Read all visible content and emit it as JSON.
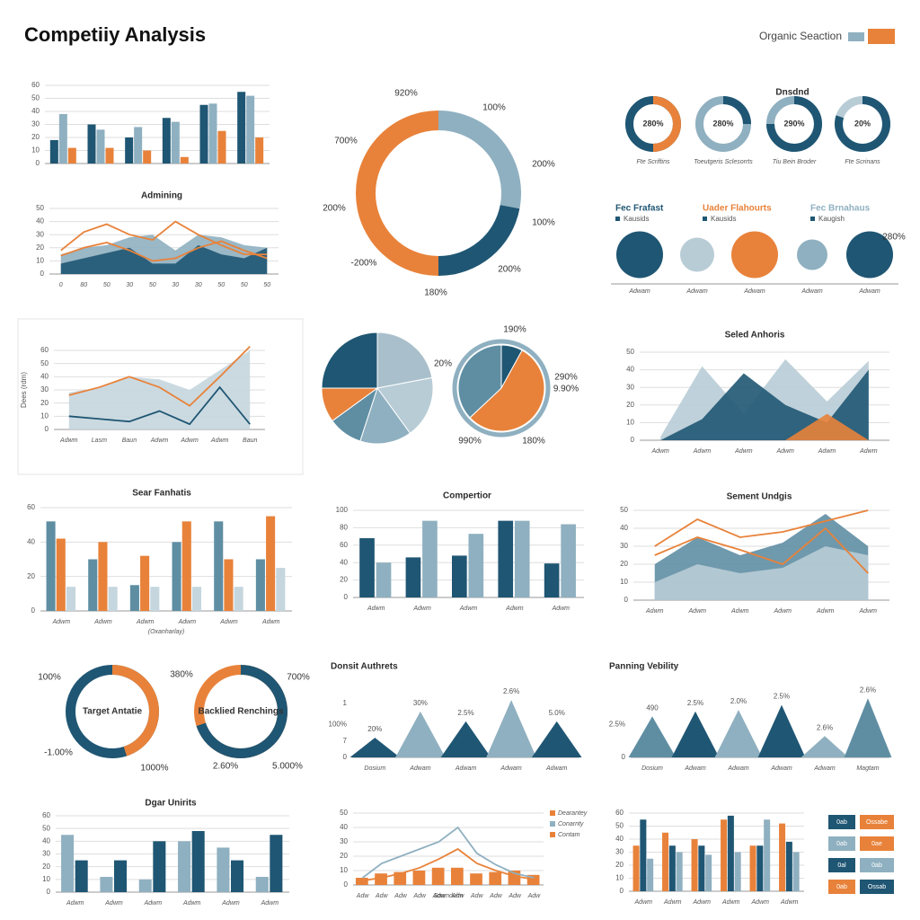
{
  "header": {
    "title": "Competiiy Analysis",
    "legend": {
      "label": "Organic Seaction",
      "colors": [
        "#8fb0c0",
        "#e8823a"
      ]
    }
  },
  "chart_data": [
    {
      "type": "bar",
      "ylim": [
        0,
        60
      ],
      "yticks": [
        0,
        10,
        20,
        30,
        40,
        50,
        60
      ],
      "grid": true,
      "series": [
        {
          "color": "#1f5673",
          "values": [
            18,
            30,
            20,
            35,
            45,
            55
          ]
        },
        {
          "color": "#8fb0c0",
          "values": [
            38,
            26,
            28,
            32,
            46,
            52
          ]
        },
        {
          "color": "#e8823a",
          "values": [
            12,
            12,
            10,
            5,
            25,
            20
          ]
        }
      ]
    },
    {
      "type": "line",
      "title": "Admining",
      "ylim": [
        0,
        50
      ],
      "yticks": [
        0,
        10,
        20,
        30,
        40,
        50
      ],
      "grid": true,
      "categories": [
        "0",
        "80",
        "50",
        "30",
        "50",
        "30",
        "30",
        "50",
        "50",
        "50"
      ],
      "series": [
        {
          "color": "#8fb0c0",
          "fill": true,
          "values": [
            15,
            20,
            22,
            28,
            30,
            18,
            30,
            28,
            22,
            20
          ]
        },
        {
          "color": "#1f5673",
          "fill": true,
          "values": [
            8,
            12,
            16,
            20,
            8,
            8,
            22,
            15,
            12,
            20
          ]
        },
        {
          "color": "#e8823a",
          "values": [
            18,
            32,
            38,
            30,
            26,
            40,
            30,
            22,
            15,
            15
          ]
        },
        {
          "color": "#e8823a",
          "values": [
            14,
            20,
            24,
            18,
            10,
            12,
            20,
            25,
            18,
            12
          ]
        }
      ]
    },
    {
      "type": "donut",
      "values": [
        28,
        22,
        50
      ],
      "colors": [
        "#8fb0c0",
        "#1f5673",
        "#e8823a"
      ],
      "annotations": [
        "920%",
        "100%",
        "200%",
        "100%",
        "200%",
        "180%",
        "-200%",
        "200%",
        "700%"
      ]
    },
    {
      "type": "donut_row",
      "title": "Dnsdnd",
      "values": [
        50,
        25,
        75,
        80
      ],
      "colors": [
        "#e8823a",
        "#1f5673",
        "#1f5673",
        "#1f5673"
      ],
      "track_colors": [
        "#1f5673",
        "#8fb0c0",
        "#8fb0c0",
        "#b8ccd6"
      ],
      "labels": [
        "280%",
        "280%",
        "290%",
        "20%"
      ],
      "captions": [
        "Fte Scriftins",
        "Toeutgeris Sclesorrts",
        "Tiu Bein Broder",
        "Fte Scrinans"
      ]
    },
    {
      "type": "bubble",
      "headings": [
        "Fec Frafast",
        "Uader Flahourts",
        "Fec Brnahaus"
      ],
      "heading_colors": [
        "#1f5673",
        "#e8823a",
        "#8fb0c0"
      ],
      "subheadings": [
        "Kausids",
        "Kausids",
        "Kaugish"
      ],
      "categories": [
        "Adwam",
        "Adwam",
        "Adwam",
        "Adwam",
        "Adwam"
      ],
      "values": [
        52,
        38,
        52,
        34,
        52
      ],
      "colors": [
        "#1f5673",
        "#b8ccd6",
        "#e8823a",
        "#8fb0c0",
        "#1f5673"
      ],
      "annotations": [
        "280%"
      ]
    },
    {
      "type": "line",
      "ylabel": "Dees (rdm)",
      "ylim": [
        0,
        60
      ],
      "yticks": [
        0,
        10,
        20,
        30,
        40,
        50,
        60
      ],
      "grid": true,
      "categories": [
        "Adwm",
        "Lasm",
        "Baun",
        "Adwm",
        "Adwm",
        "Adwm",
        "Baun"
      ],
      "series": [
        {
          "color": "#c5d6de",
          "fill": true,
          "values": [
            28,
            32,
            40,
            38,
            30,
            45,
            60
          ]
        },
        {
          "color": "#e8823a",
          "values": [
            26,
            32,
            40,
            32,
            18,
            40,
            63
          ]
        },
        {
          "color": "#1f5673",
          "values": [
            10,
            8,
            6,
            14,
            4,
            32,
            4
          ]
        }
      ]
    },
    {
      "type": "pie",
      "values": [
        22,
        18,
        15,
        10,
        10,
        25
      ],
      "colors": [
        "#a9c0cc",
        "#b8ccd6",
        "#8fb0c0",
        "#5f8ea3",
        "#e8823a",
        "#1f5673"
      ],
      "annotations": [
        "20%"
      ]
    },
    {
      "type": "pie",
      "values": [
        8,
        55,
        37
      ],
      "colors": [
        "#1f5673",
        "#e8823a",
        "#5f8ea3"
      ],
      "annotations": [
        "190%",
        "290%",
        "9.90%",
        "180%",
        "990%"
      ]
    },
    {
      "type": "line",
      "title": "Seled Anhoris",
      "ylim": [
        0,
        50
      ],
      "yticks": [
        0,
        10,
        20,
        30,
        40,
        50
      ],
      "grid": true,
      "categories": [
        "Adwm",
        "Adwm",
        "Adwm",
        "Adwm",
        "Adwm",
        "Adwm"
      ],
      "series": [
        {
          "color": "#b8ccd6",
          "fill": true,
          "values": [
            2,
            42,
            15,
            46,
            22,
            45
          ]
        },
        {
          "color": "#1f5673",
          "fill": true,
          "values": [
            0,
            12,
            38,
            20,
            10,
            40
          ]
        },
        {
          "color": "#e8823a",
          "fill": true,
          "values": [
            0,
            0,
            0,
            0,
            15,
            0
          ]
        }
      ]
    },
    {
      "type": "bar",
      "title": "Sear Fanhatis",
      "xlabel": "(Oxanharlay)",
      "ylim": [
        0,
        60
      ],
      "yticks": [
        0,
        20,
        40,
        60
      ],
      "grid": true,
      "categories": [
        "Adwm",
        "Adwm",
        "Adwm",
        "Adwm",
        "Adwm",
        "Adwm"
      ],
      "series": [
        {
          "color": "#5f8ea3",
          "values": [
            52,
            30,
            15,
            40,
            52,
            30
          ]
        },
        {
          "color": "#e8823a",
          "values": [
            42,
            40,
            32,
            52,
            30,
            55
          ]
        },
        {
          "color": "#c5d6de",
          "values": [
            14,
            14,
            14,
            14,
            14,
            25
          ]
        }
      ]
    },
    {
      "type": "bar",
      "title": "Compertior",
      "ylim": [
        0,
        100
      ],
      "yticks": [
        0,
        20,
        40,
        60,
        80,
        100
      ],
      "grid": true,
      "categories": [
        "Adwm",
        "Adwm",
        "Adwm",
        "Adwm",
        "Adwm"
      ],
      "series": [
        {
          "color": "#1f5673",
          "values": [
            68,
            46,
            48,
            88,
            39
          ]
        },
        {
          "color": "#8fb0c0",
          "values": [
            40,
            88,
            73,
            88,
            84
          ]
        }
      ]
    },
    {
      "type": "line",
      "title": "Sement Undgis",
      "ylim": [
        0,
        50
      ],
      "yticks": [
        0,
        10,
        20,
        30,
        40,
        50
      ],
      "grid": true,
      "categories": [
        "Adwm",
        "Adwm",
        "Adwm",
        "Adwm",
        "Adwm",
        "Adwm"
      ],
      "series": [
        {
          "color": "#5f8ea3",
          "fill": true,
          "values": [
            20,
            35,
            25,
            32,
            48,
            30
          ]
        },
        {
          "color": "#b8ccd6",
          "fill": true,
          "values": [
            10,
            20,
            15,
            18,
            30,
            25
          ]
        },
        {
          "color": "#e8823a",
          "values": [
            30,
            45,
            35,
            38,
            44,
            50
          ]
        },
        {
          "color": "#e8823a",
          "values": [
            25,
            35,
            28,
            20,
            40,
            15
          ]
        }
      ]
    },
    {
      "type": "donut_row",
      "values": [
        45,
        70
      ],
      "colors": [
        "#e8823a",
        "#1f5673"
      ],
      "track_colors": [
        "#1f5673",
        "#e8823a"
      ],
      "labels": [
        "Target Antatie",
        "Backlied Renchings"
      ],
      "annotations": [
        "100%",
        "-1.00%",
        "1000%",
        "380%",
        "700%",
        "2.60%",
        "5.000%"
      ]
    },
    {
      "type": "triangle",
      "title": "Donsit Authrets",
      "ylim": [
        0,
        4
      ],
      "yticks": [
        0,
        {
          "value": 1,
          "label": "7"
        },
        {
          "value": 2,
          "label": "100%"
        },
        {
          "value": 3.3,
          "label": "1"
        }
      ],
      "categories": [
        "Dosium",
        "Adwam",
        "Adwam",
        "Adwam",
        "Adwam"
      ],
      "values": [
        1.2,
        2.8,
        2.2,
        3.5,
        2.2
      ],
      "colors": [
        "#1f5673",
        "#8fb0c0",
        "#1f5673",
        "#8fb0c0",
        "#1f5673"
      ],
      "annotations": [
        "20%",
        "30%",
        "2.5%",
        "2.6%",
        "5.0%"
      ]
    },
    {
      "type": "triangle",
      "title": "Panning Vebility",
      "ylim": [
        0,
        4
      ],
      "yticks": [
        0,
        {
          "value": 2,
          "label": "2.5%"
        }
      ],
      "categories": [
        "Dosium",
        "Adwam",
        "Adwam",
        "Adwam",
        "Adwam",
        "Magtam"
      ],
      "values": [
        2.5,
        2.8,
        2.9,
        3.2,
        1.3,
        3.6
      ],
      "colors": [
        "#5f8ea3",
        "#1f5673",
        "#8fb0c0",
        "#1f5673",
        "#8fb0c0",
        "#5f8ea3"
      ],
      "annotations": [
        "490",
        "2.5%",
        "2.0%",
        "2.5%",
        "2.6%",
        "2.6%"
      ]
    },
    {
      "type": "bar",
      "title": "Dgar Unirits",
      "ylim": [
        0,
        60
      ],
      "yticks": [
        0,
        10,
        20,
        30,
        40,
        50,
        60
      ],
      "grid": true,
      "categories": [
        "Adwm",
        "Adwm",
        "Adwm",
        "Adwm",
        "Adwm",
        "Adwm"
      ],
      "series": [
        {
          "color": "#8fb0c0",
          "values": [
            45,
            12,
            10,
            40,
            35,
            12
          ]
        },
        {
          "color": "#1f5673",
          "values": [
            25,
            25,
            40,
            48,
            25,
            45
          ]
        }
      ]
    },
    {
      "type": "line",
      "xlabel": "Sownduhn",
      "ylim": [
        0,
        50
      ],
      "yticks": [
        0,
        10,
        20,
        30,
        40,
        50
      ],
      "grid": true,
      "categories": [
        "Adw",
        "Adw",
        "Adw",
        "Adw",
        "Adw",
        "Adw",
        "Adw",
        "Adw",
        "Adw",
        "Adw"
      ],
      "series": [
        {
          "name": "Dearantey",
          "color": "#e8823a",
          "style": "bar",
          "values": [
            5,
            8,
            9,
            10,
            12,
            12,
            8,
            9,
            10,
            7
          ]
        },
        {
          "name": "Conarnty",
          "color": "#8fb0c0",
          "values": [
            5,
            15,
            20,
            25,
            30,
            40,
            22,
            14,
            8,
            5
          ]
        },
        {
          "name": "Contam",
          "color": "#e8823a",
          "values": [
            3,
            5,
            8,
            12,
            18,
            25,
            15,
            10,
            6,
            4
          ]
        }
      ]
    },
    {
      "type": "bar",
      "ylim": [
        0,
        60
      ],
      "yticks": [
        0,
        10,
        20,
        30,
        40,
        50,
        60
      ],
      "grid": true,
      "categories": [
        "Adwm",
        "Adwm",
        "Adwm",
        "Adwm",
        "Adwm",
        "Adwm"
      ],
      "series": [
        {
          "color": "#e8823a",
          "values": [
            35,
            45,
            40,
            55,
            35,
            52
          ]
        },
        {
          "color": "#1f5673",
          "values": [
            55,
            35,
            35,
            58,
            35,
            38
          ]
        },
        {
          "color": "#8fb0c0",
          "values": [
            25,
            30,
            28,
            30,
            55,
            30
          ]
        }
      ]
    }
  ],
  "legend_buttons": [
    {
      "label": "0ab",
      "color": "#1f5673"
    },
    {
      "label": "Ossabe",
      "color": "#e8823a"
    },
    {
      "label": "0ab",
      "color": "#8fb0c0"
    },
    {
      "label": "0ae",
      "color": "#e8823a"
    },
    {
      "label": "0al",
      "color": "#1f5673"
    },
    {
      "label": "0ab",
      "color": "#8fb0c0"
    },
    {
      "label": "0ab",
      "color": "#e8823a"
    },
    {
      "label": "Ossab",
      "color": "#1f5673"
    }
  ]
}
